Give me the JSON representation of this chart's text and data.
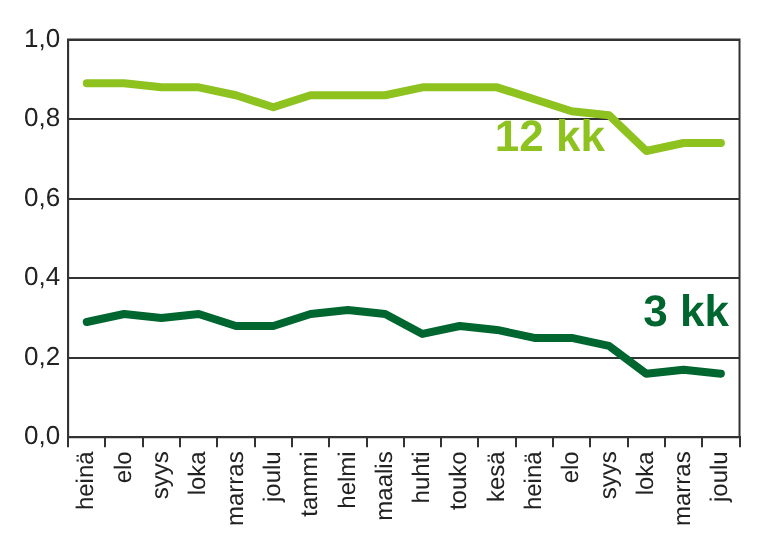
{
  "chart_data": {
    "type": "line",
    "categories": [
      "heinä",
      "elo",
      "syys",
      "loka",
      "marras",
      "joulu",
      "tammi",
      "helmi",
      "maalis",
      "huhti",
      "touko",
      "kesä",
      "heinä",
      "elo",
      "syys",
      "loka",
      "marras",
      "joulu"
    ],
    "series": [
      {
        "name": "12 kk",
        "color": "#8dc21f",
        "values": [
          0.89,
          0.89,
          0.88,
          0.88,
          0.86,
          0.83,
          0.86,
          0.86,
          0.86,
          0.88,
          0.88,
          0.88,
          0.85,
          0.82,
          0.81,
          0.72,
          0.74,
          0.74
        ]
      },
      {
        "name": "3 kk",
        "color": "#00662f",
        "values": [
          0.29,
          0.31,
          0.3,
          0.31,
          0.28,
          0.28,
          0.31,
          0.32,
          0.31,
          0.26,
          0.28,
          0.27,
          0.25,
          0.25,
          0.23,
          0.16,
          0.17,
          0.16
        ]
      }
    ],
    "ylim": [
      0,
      1
    ],
    "yticks": [
      {
        "value": 0,
        "label": "0,0"
      },
      {
        "value": 0.2,
        "label": "0,2"
      },
      {
        "value": 0.4,
        "label": "0,4"
      },
      {
        "value": 0.6,
        "label": "0,6"
      },
      {
        "value": 0.8,
        "label": "0,8"
      },
      {
        "value": 1,
        "label": "1,0"
      }
    ],
    "grid": "y",
    "legend": false,
    "marker": "none",
    "line_style": "solid"
  }
}
